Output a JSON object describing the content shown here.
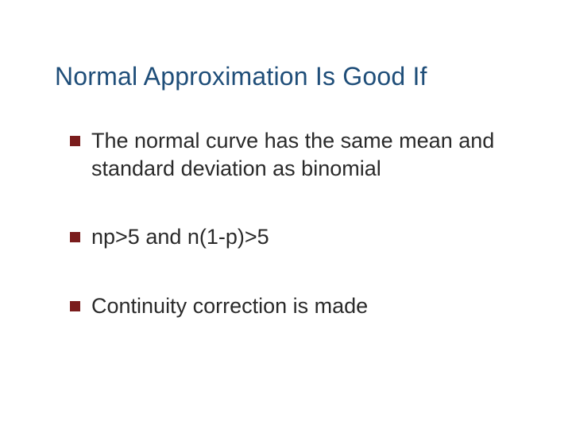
{
  "slide": {
    "title": "Normal Approximation Is Good If",
    "title_color": "#1f4e79",
    "title_fontsize": 32,
    "bullet_marker_color": "#7a1c1c",
    "bullet_marker_size": 13,
    "body_text_color": "#2a2a2a",
    "body_fontsize": 27,
    "background_color": "#ffffff",
    "bullets": [
      {
        "text": "The normal curve has the same mean and standard deviation as binomial"
      },
      {
        "text": "np>5 and n(1-p)>5"
      },
      {
        "text": "Continuity correction is made"
      }
    ]
  }
}
